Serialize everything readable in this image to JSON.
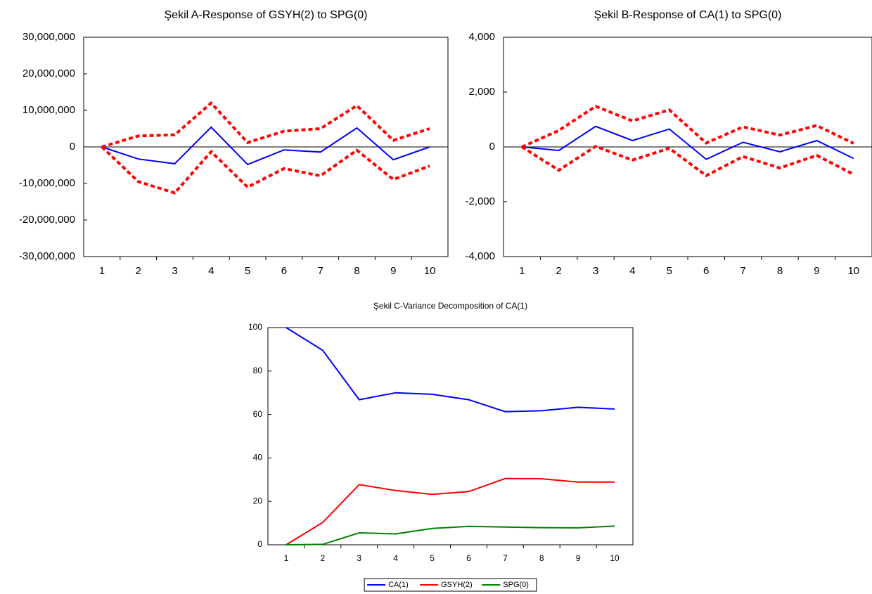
{
  "chart_data": [
    {
      "type": "line",
      "title": "Şekil A-Response of GSYH(2) to SPG(0)",
      "categories": [
        "1",
        "2",
        "3",
        "4",
        "5",
        "6",
        "7",
        "8",
        "9",
        "10"
      ],
      "ylim": [
        -30000000,
        30000000
      ],
      "yticks": [
        {
          "v": 30000000,
          "label": "30,000,000"
        },
        {
          "v": 20000000,
          "label": "20,000,000"
        },
        {
          "v": 10000000,
          "label": "10,000,000"
        },
        {
          "v": 0,
          "label": "0"
        },
        {
          "v": -10000000,
          "label": "-10,000,000"
        },
        {
          "v": -20000000,
          "label": "-20,000,000"
        },
        {
          "v": -30000000,
          "label": "-30,000,000"
        }
      ],
      "grid": false,
      "zero_line": true,
      "series": [
        {
          "color": "#ff0000",
          "dashed": true,
          "values": [
            0,
            3000000,
            3300000,
            12000000,
            1200000,
            4300000,
            5000000,
            11300000,
            1800000,
            5000000
          ]
        },
        {
          "color": "#0000ff",
          "dashed": false,
          "values": [
            0,
            -3300000,
            -4600000,
            5400000,
            -4800000,
            -800000,
            -1400000,
            5200000,
            -3500000,
            0
          ]
        },
        {
          "color": "#ff0000",
          "dashed": true,
          "values": [
            0,
            -9500000,
            -12600000,
            -1300000,
            -11000000,
            -5900000,
            -7900000,
            -900000,
            -8900000,
            -5200000
          ]
        }
      ]
    },
    {
      "type": "line",
      "title": "Şekil B-Response of CA(1) to SPG(0)",
      "categories": [
        "1",
        "2",
        "3",
        "4",
        "5",
        "6",
        "7",
        "8",
        "9",
        "10"
      ],
      "ylim": [
        -4000,
        4000
      ],
      "yticks": [
        {
          "v": 4000,
          "label": "4,000"
        },
        {
          "v": 2000,
          "label": "2,000"
        },
        {
          "v": 0,
          "label": "0"
        },
        {
          "v": -2000,
          "label": "-2,000"
        },
        {
          "v": -4000,
          "label": "-4,000"
        }
      ],
      "grid": false,
      "zero_line": true,
      "series": [
        {
          "color": "#ff0000",
          "dashed": true,
          "values": [
            0,
            600,
            1480,
            950,
            1350,
            140,
            730,
            430,
            780,
            130
          ]
        },
        {
          "color": "#0000ff",
          "dashed": false,
          "values": [
            0,
            -130,
            750,
            230,
            650,
            -450,
            170,
            -180,
            230,
            -420
          ]
        },
        {
          "color": "#ff0000",
          "dashed": true,
          "values": [
            0,
            -850,
            20,
            -480,
            -50,
            -1050,
            -350,
            -770,
            -310,
            -1000
          ]
        }
      ]
    },
    {
      "type": "line",
      "title": "Şekil C-Variance Decomposition of CA(1)",
      "categories": [
        "1",
        "2",
        "3",
        "4",
        "5",
        "6",
        "7",
        "8",
        "9",
        "10"
      ],
      "ylim": [
        0,
        100
      ],
      "yticks": [
        {
          "v": 100,
          "label": "100"
        },
        {
          "v": 80,
          "label": "80"
        },
        {
          "v": 60,
          "label": "60"
        },
        {
          "v": 40,
          "label": "40"
        },
        {
          "v": 20,
          "label": "20"
        },
        {
          "v": 0,
          "label": "0"
        }
      ],
      "grid": false,
      "zero_line": false,
      "legend": "bottom",
      "series": [
        {
          "name": "CA(1)",
          "color": "#0000ff",
          "dashed": false,
          "values": [
            100,
            89.5,
            66.8,
            70,
            69.3,
            66.8,
            61.3,
            61.7,
            63.3,
            62.5
          ]
        },
        {
          "name": "GSYH(2)",
          "color": "#ff0000",
          "dashed": false,
          "values": [
            0,
            10.3,
            27.7,
            25,
            23.2,
            24.5,
            30.5,
            30.4,
            28.9,
            28.9
          ]
        },
        {
          "name": "SPG(0)",
          "color": "#008000",
          "dashed": false,
          "values": [
            0,
            0.2,
            5.5,
            5,
            7.5,
            8.5,
            8.2,
            7.9,
            7.8,
            8.6
          ]
        }
      ]
    }
  ]
}
